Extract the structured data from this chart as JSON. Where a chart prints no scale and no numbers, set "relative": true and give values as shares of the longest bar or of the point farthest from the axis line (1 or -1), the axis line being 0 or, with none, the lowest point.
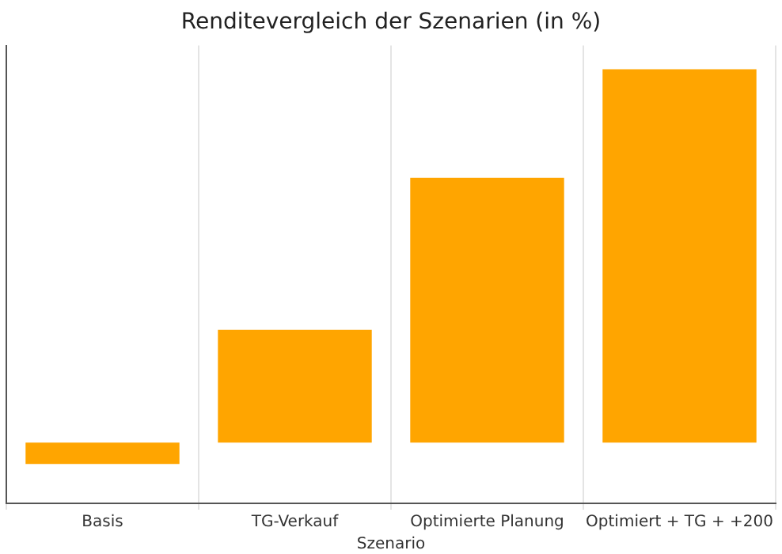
{
  "chart_data": {
    "type": "bar",
    "title": "Renditevergleich der Szenarien (in %)",
    "xlabel": "Szenario",
    "categories": [
      "Basis",
      "TG-Verkauf",
      "Optimierte Planung",
      "Optimiert + TG + +200"
    ],
    "values": [
      -0.057,
      0.302,
      0.709,
      1
    ],
    "color": "#ffa500",
    "relative": true,
    "grid": "x"
  }
}
